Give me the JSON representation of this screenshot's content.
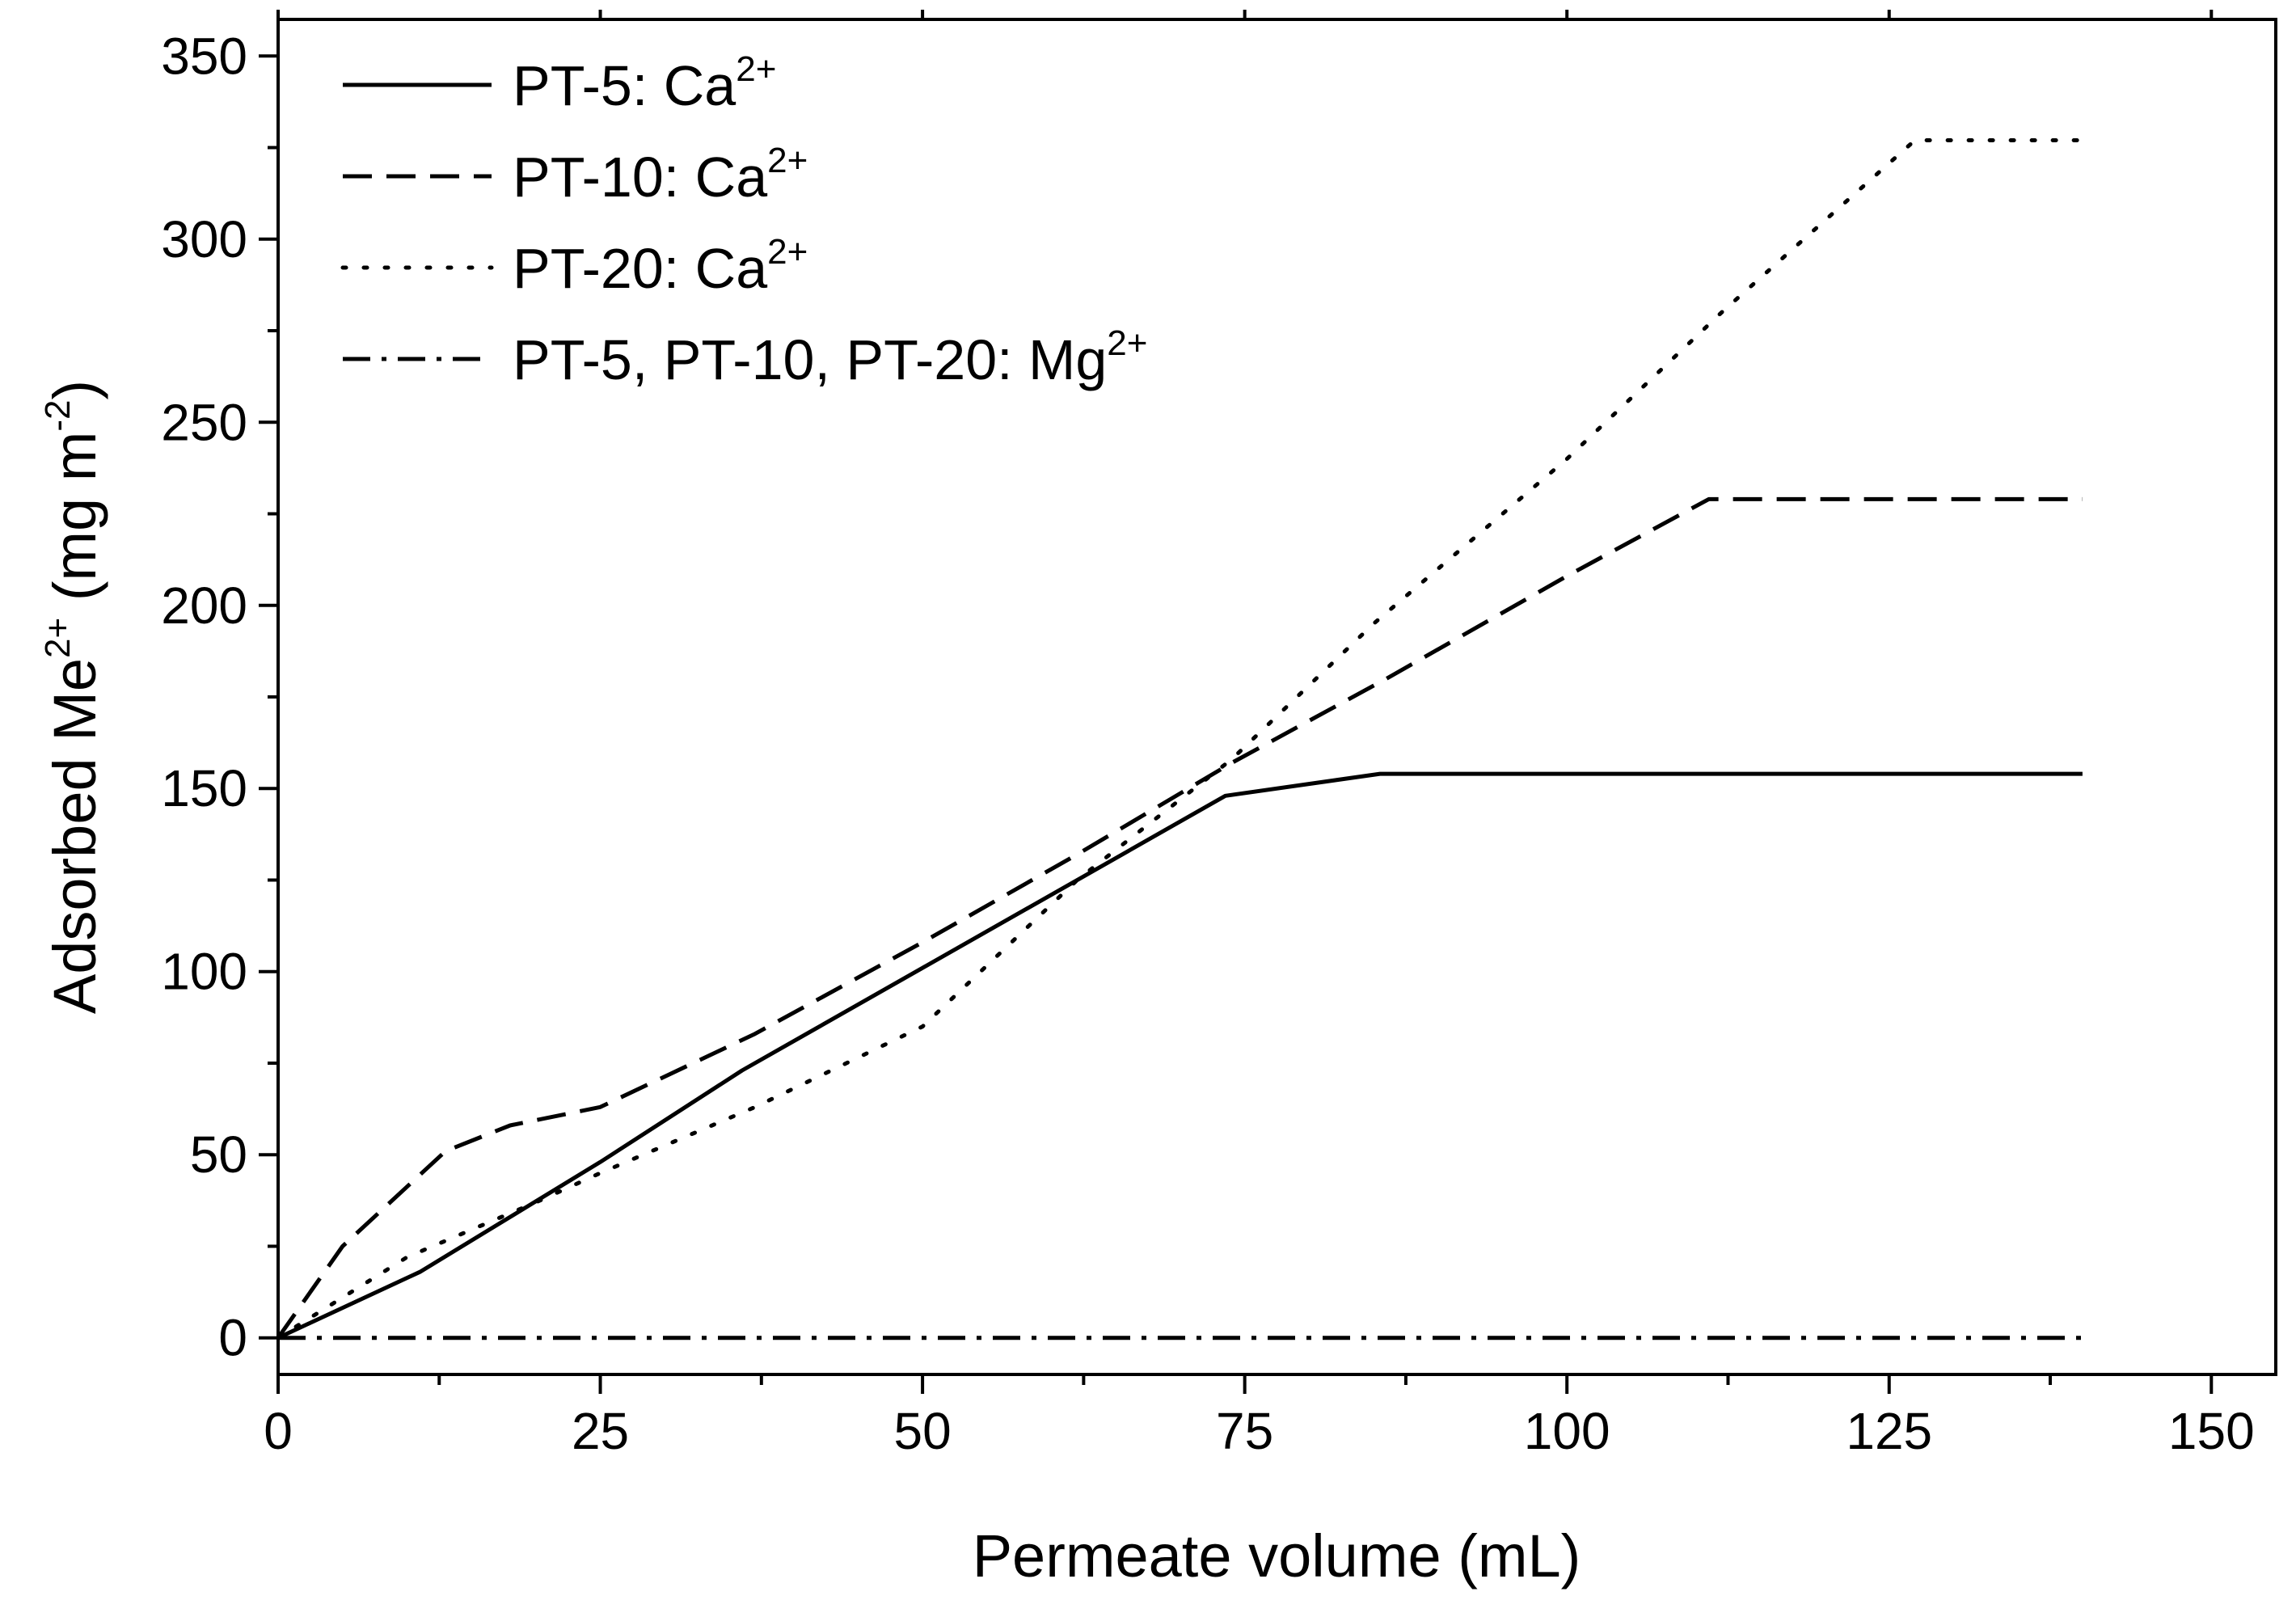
{
  "chart_data": {
    "type": "line",
    "title": "",
    "xlabel": "Permeate volume (mL)",
    "ylabel": {
      "text": "Adsorbed Me",
      "sup": "2+",
      "unit": " (mg m",
      "unit_sup": "-2",
      "close": ")"
    },
    "xlim": [
      0,
      155
    ],
    "ylim": [
      -10,
      360
    ],
    "x_ticks": [
      0,
      25,
      50,
      75,
      100,
      125,
      150
    ],
    "y_ticks": [
      0,
      50,
      100,
      150,
      200,
      250,
      300,
      350
    ],
    "x_tick_labels": [
      "0",
      "25",
      "50",
      "75",
      "100",
      "125",
      "150"
    ],
    "y_tick_labels": [
      "0",
      "50",
      "100",
      "150",
      "200",
      "250",
      "300",
      "350"
    ],
    "legend_position": "top-left",
    "series": [
      {
        "name": "PT-5: Ca2+",
        "label": "PT-5: Ca",
        "sup": "2+",
        "style": "solid",
        "x": [
          0,
          11,
          25,
          36,
          50,
          73.5,
          85.5,
          140
        ],
        "y": [
          0,
          18,
          48,
          73,
          101,
          148,
          154,
          154
        ]
      },
      {
        "name": "PT-10: Ca2+",
        "label": "PT-10: Ca",
        "sup": "2+",
        "style": "dashed",
        "x": [
          0,
          5,
          13,
          18,
          25,
          37,
          50,
          62,
          74,
          86,
          100,
          111,
          140
        ],
        "y": [
          0,
          25,
          51,
          58,
          63,
          83,
          108,
          132,
          157,
          180,
          208,
          229,
          229
        ]
      },
      {
        "name": "PT-20: Ca2+",
        "label": "PT-20: Ca",
        "sup": "2+",
        "style": "dotted",
        "x": [
          0,
          10,
          20,
          25,
          37,
          50,
          62,
          74,
          85,
          100,
          112,
          127,
          140
        ],
        "y": [
          0,
          22,
          37,
          45,
          63,
          85,
          125,
          158,
          195,
          240,
          280,
          327,
          327
        ]
      },
      {
        "name": "PT-5, PT-10, PT-20: Mg2+",
        "label": "PT-5, PT-10, PT-20: Mg",
        "sup": "2+",
        "style": "dashdot",
        "x": [
          0,
          140
        ],
        "y": [
          0,
          0
        ]
      }
    ]
  }
}
